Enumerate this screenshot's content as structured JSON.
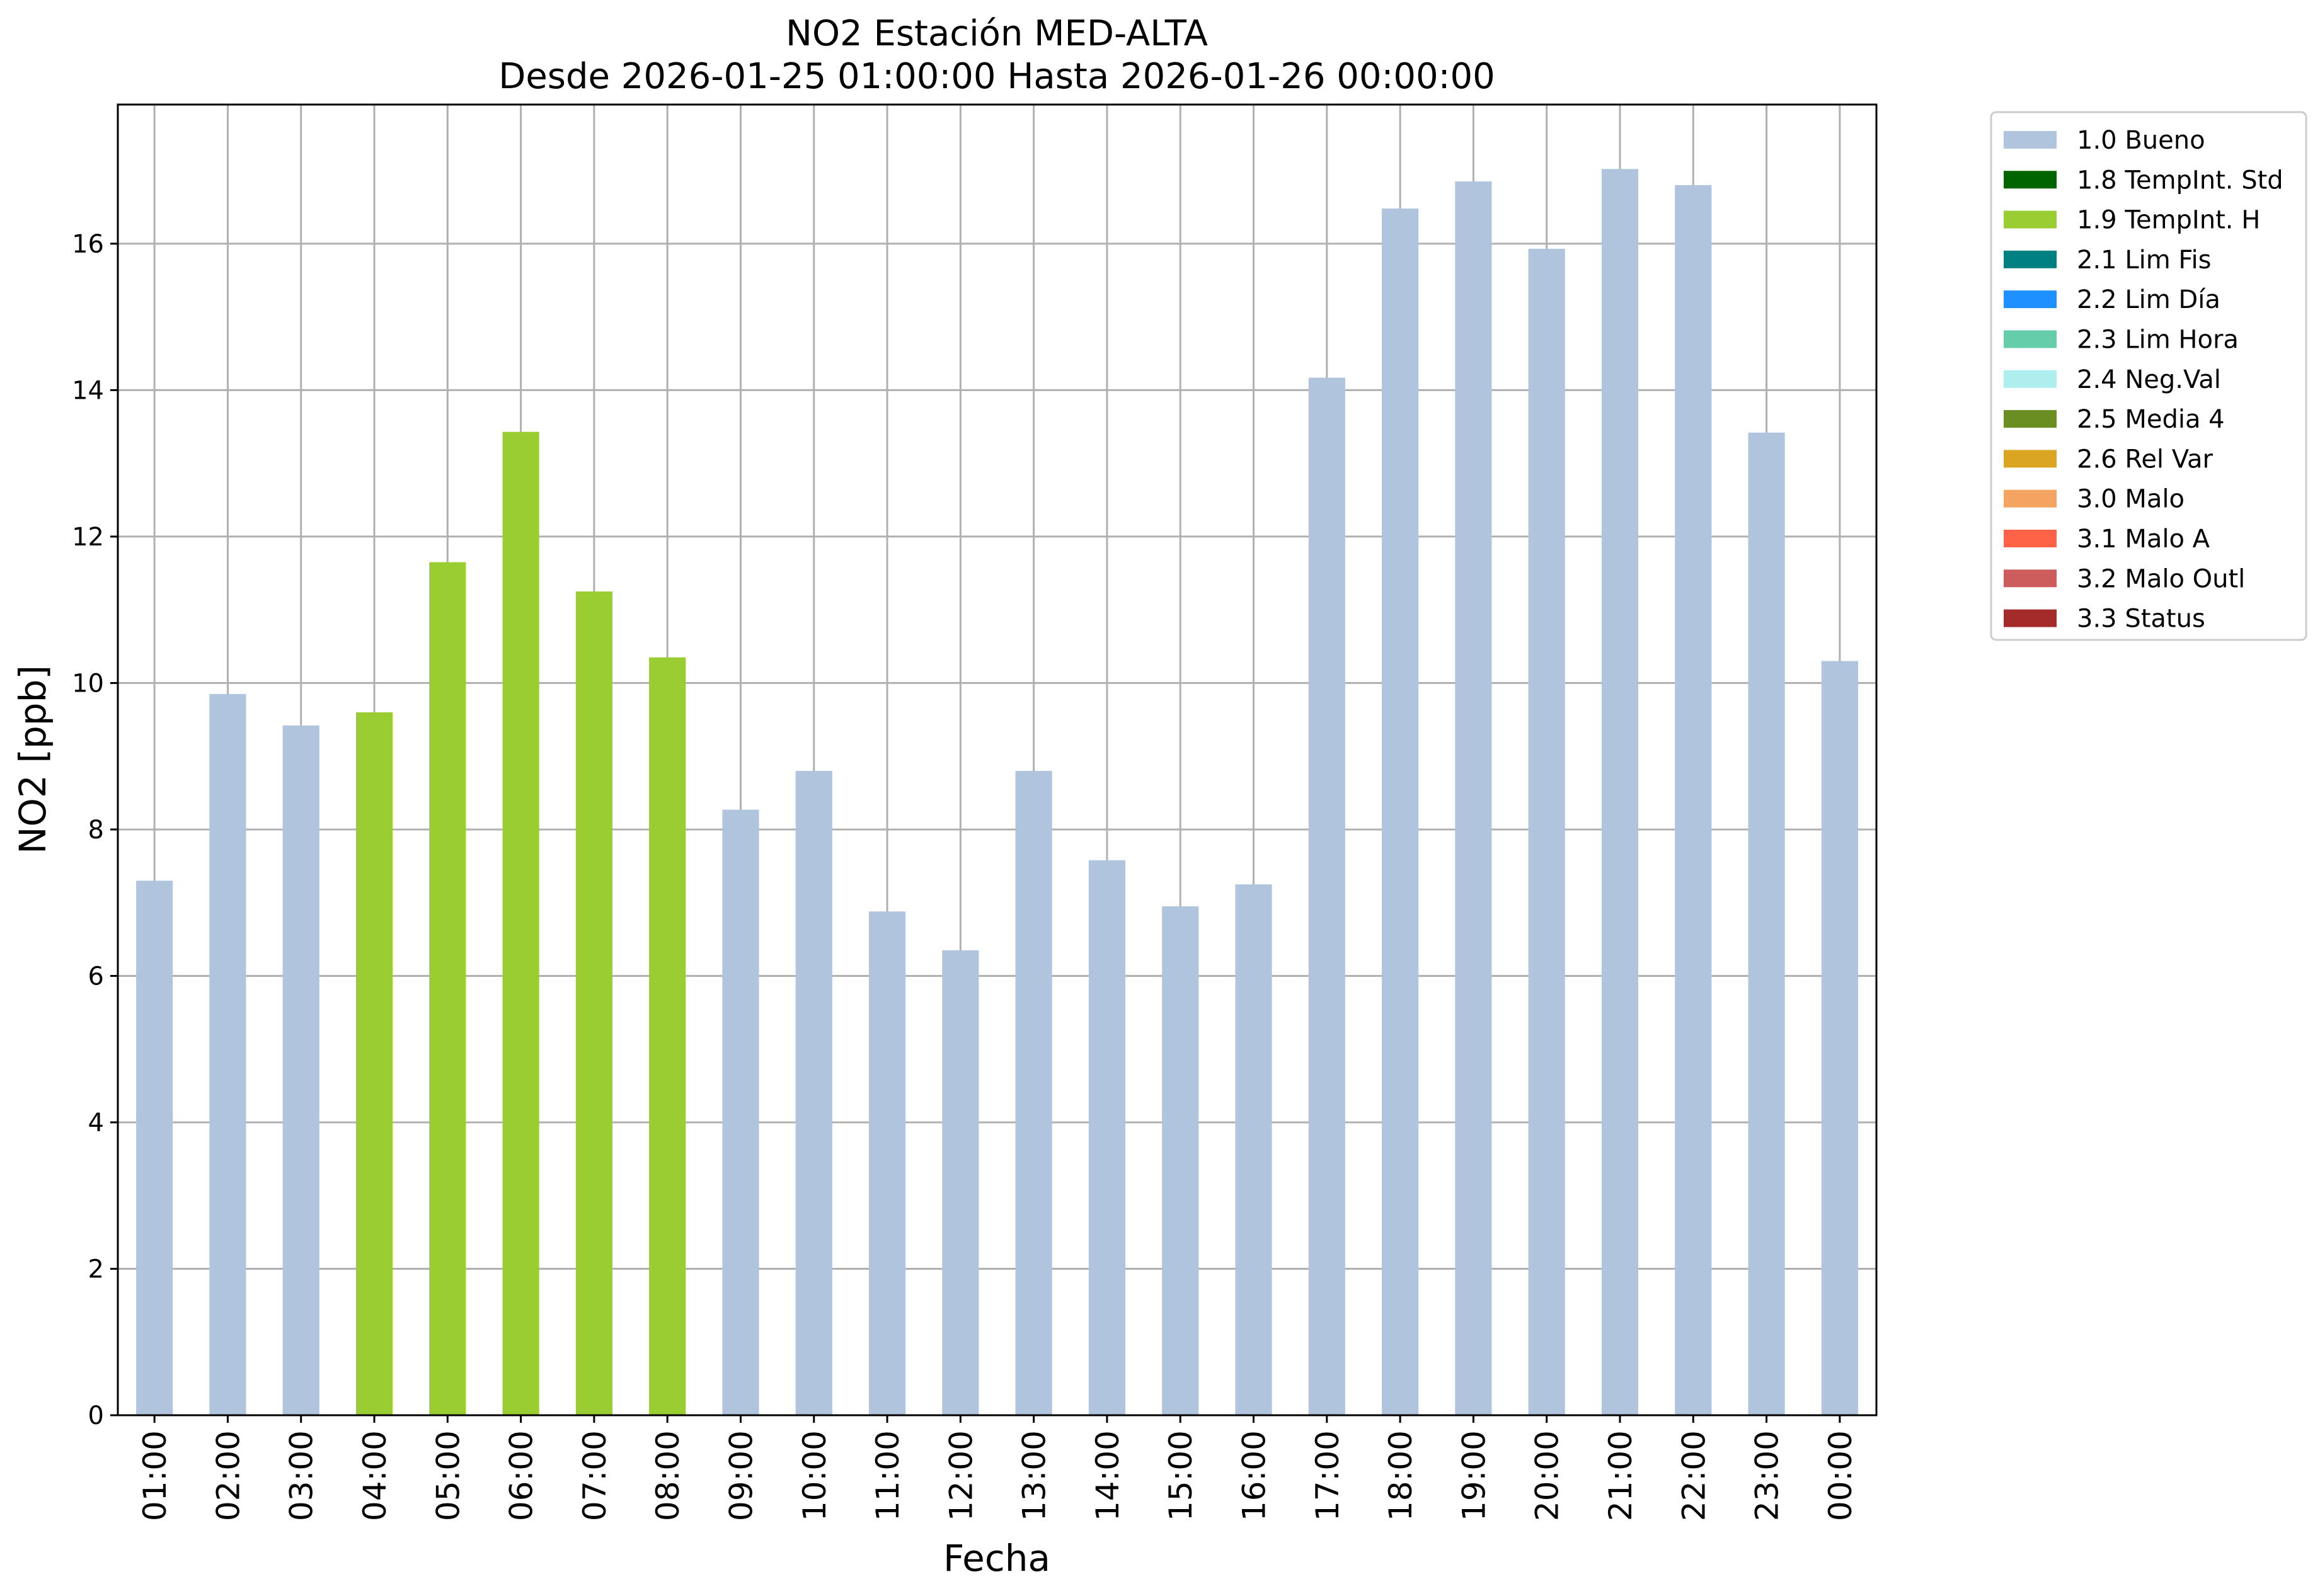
{
  "chart_data": {
    "type": "bar",
    "title": "NO2 Estación MED-ALTA",
    "subtitle": "Desde 2026-01-25 01:00:00 Hasta 2026-01-26 00:00:00",
    "xlabel": "Fecha",
    "ylabel": "NO2 [ppb]",
    "ylim": [
      0,
      17.9
    ],
    "yticks": [
      0,
      2,
      4,
      6,
      8,
      10,
      12,
      14,
      16
    ],
    "grid": true,
    "legend_position": "outside-right",
    "categories": [
      "01:00",
      "02:00",
      "03:00",
      "04:00",
      "05:00",
      "06:00",
      "07:00",
      "08:00",
      "09:00",
      "10:00",
      "11:00",
      "12:00",
      "13:00",
      "14:00",
      "15:00",
      "16:00",
      "17:00",
      "18:00",
      "19:00",
      "20:00",
      "21:00",
      "22:00",
      "23:00",
      "00:00"
    ],
    "values": [
      7.3,
      9.85,
      9.42,
      9.6,
      11.65,
      13.43,
      11.25,
      10.35,
      8.27,
      8.8,
      6.88,
      6.35,
      8.8,
      7.58,
      6.95,
      7.25,
      14.17,
      16.48,
      16.85,
      15.93,
      17.02,
      16.8,
      13.42,
      10.3
    ],
    "flags": [
      "1.0 Bueno",
      "1.0 Bueno",
      "1.0 Bueno",
      "1.9 TempInt. H",
      "1.9 TempInt. H",
      "1.9 TempInt. H",
      "1.9 TempInt. H",
      "1.9 TempInt. H",
      "1.0 Bueno",
      "1.0 Bueno",
      "1.0 Bueno",
      "1.0 Bueno",
      "1.0 Bueno",
      "1.0 Bueno",
      "1.0 Bueno",
      "1.0 Bueno",
      "1.0 Bueno",
      "1.0 Bueno",
      "1.0 Bueno",
      "1.0 Bueno",
      "1.0 Bueno",
      "1.0 Bueno",
      "1.0 Bueno",
      "1.0 Bueno"
    ],
    "legend": [
      {
        "label": "1.0 Bueno",
        "color": "#b0c4de"
      },
      {
        "label": "1.8 TempInt. Std",
        "color": "#006400"
      },
      {
        "label": "1.9 TempInt. H",
        "color": "#9acd32"
      },
      {
        "label": "2.1 Lim Fis",
        "color": "#008080"
      },
      {
        "label": "2.2 Lim Día",
        "color": "#1e90ff"
      },
      {
        "label": "2.3 Lim Hora",
        "color": "#66cdaa"
      },
      {
        "label": "2.4 Neg.Val",
        "color": "#afeeee"
      },
      {
        "label": "2.5 Media 4",
        "color": "#6b8e23"
      },
      {
        "label": "2.6 Rel Var",
        "color": "#daa520"
      },
      {
        "label": "3.0 Malo",
        "color": "#f4a460"
      },
      {
        "label": "3.1 Malo A",
        "color": "#ff6347"
      },
      {
        "label": "3.2 Malo Outl",
        "color": "#cd5c5c"
      },
      {
        "label": "3.3 Status",
        "color": "#a52a2a"
      }
    ]
  }
}
